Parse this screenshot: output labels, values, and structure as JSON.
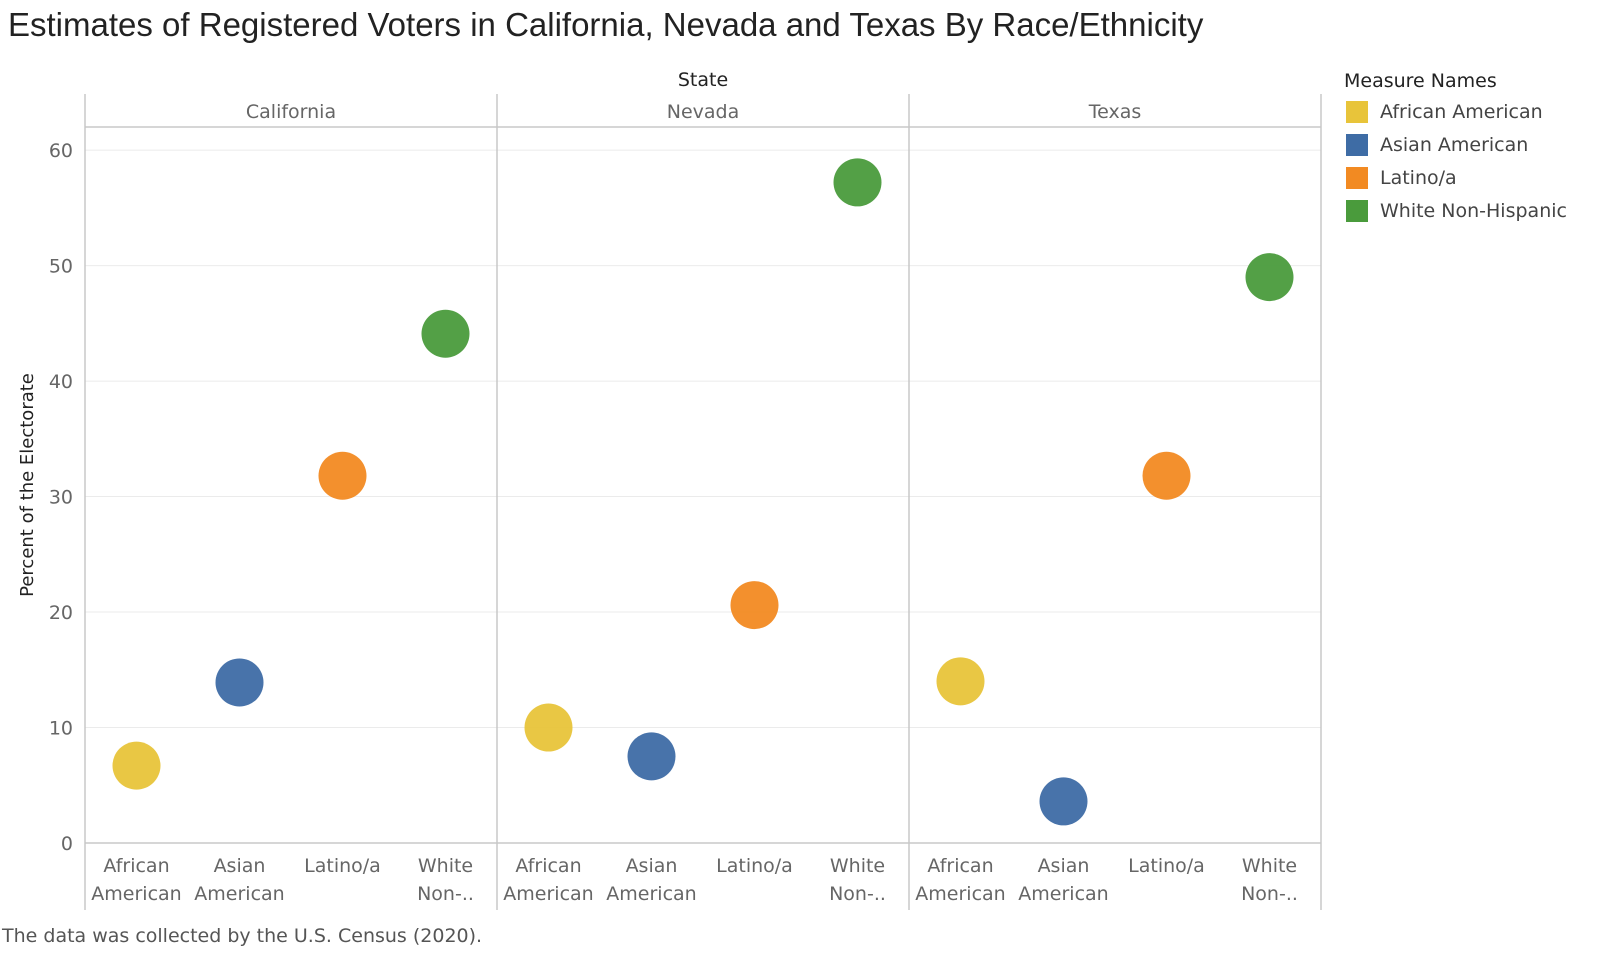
{
  "title": "Estimates of Registered Voters in California, Nevada and Texas By Race/Ethnicity",
  "footnote": "The data was collected by the U.S. Census (2020).",
  "legend": {
    "title": "Measure Names",
    "items": [
      {
        "label": "African American",
        "color": "#E8C43A"
      },
      {
        "label": "Asian American",
        "color": "#3E6CA5"
      },
      {
        "label": "Latino/a",
        "color": "#F28A22"
      },
      {
        "label": "White Non-Hispanic",
        "color": "#4A9B3C"
      }
    ]
  },
  "chart_data": {
    "type": "scatter",
    "column_header": "State",
    "ylabel": "Percent of the Electorate",
    "ylim": [
      0,
      62
    ],
    "yticks": [
      0,
      10,
      20,
      30,
      40,
      50,
      60
    ],
    "grid": true,
    "legend_position": "right",
    "categories": [
      [
        "African",
        "American"
      ],
      [
        "Asian",
        "American"
      ],
      [
        "Latino/a"
      ],
      [
        "White",
        "Non-.."
      ]
    ],
    "panels": [
      {
        "state": "California",
        "values": [
          6.7,
          13.9,
          31.8,
          44.1
        ]
      },
      {
        "state": "Nevada",
        "values": [
          10.0,
          7.5,
          20.6,
          57.2
        ]
      },
      {
        "state": "Texas",
        "values": [
          14.0,
          3.6,
          31.8,
          49.0
        ]
      }
    ]
  }
}
